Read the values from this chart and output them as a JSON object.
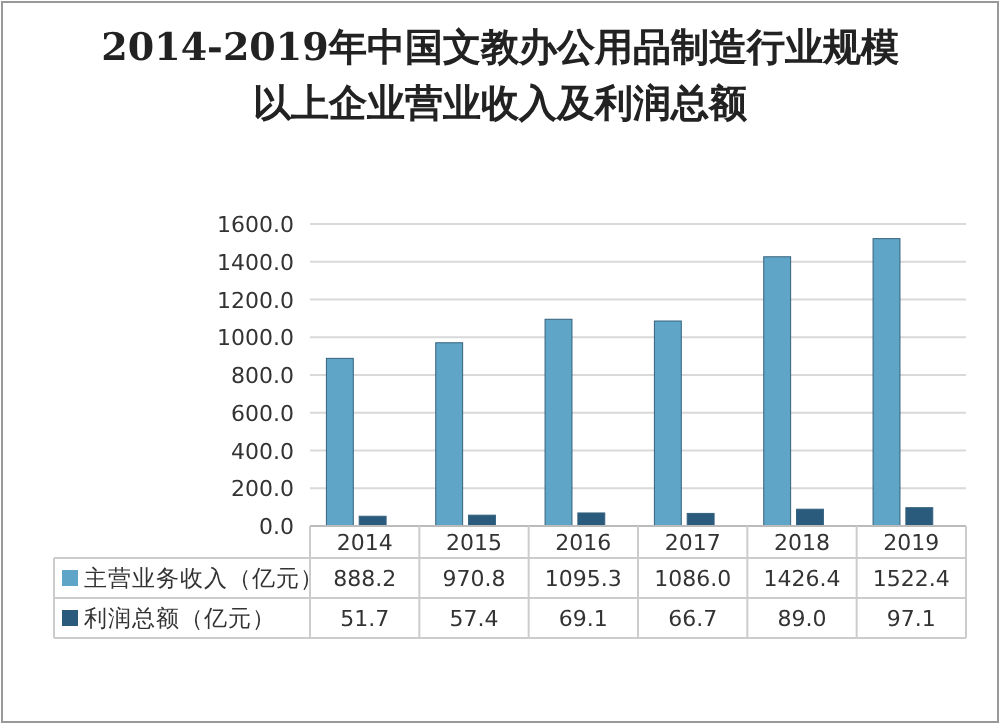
{
  "chart_data": {
    "type": "bar",
    "title": "2014-2019年中国文教办公用品制造行业规模以上企业营业收入及利润总额",
    "categories": [
      "2014",
      "2015",
      "2016",
      "2017",
      "2018",
      "2019"
    ],
    "series": [
      {
        "name": "主营业务收入（亿元）",
        "color": "#5fa5c8",
        "values": [
          888.2,
          970.8,
          1095.3,
          1086.0,
          1426.4,
          1522.4
        ],
        "value_labels": [
          "888.2",
          "970.8",
          "1095.3",
          "1086.0",
          "1426.4",
          "1522.4"
        ]
      },
      {
        "name": "利润总额（亿元）",
        "color": "#2a5b7c",
        "values": [
          51.7,
          57.4,
          69.1,
          66.7,
          89.0,
          97.1
        ],
        "value_labels": [
          "51.7",
          "57.4",
          "69.1",
          "66.7",
          "89.0",
          "97.1"
        ]
      }
    ],
    "ylim": [
      0,
      1600
    ],
    "yticks": [
      {
        "value": 0,
        "label": "0.0"
      },
      {
        "value": 200,
        "label": "200.0"
      },
      {
        "value": 400,
        "label": "400.0"
      },
      {
        "value": 600,
        "label": "600.0"
      },
      {
        "value": 800,
        "label": "800.0"
      },
      {
        "value": 1000,
        "label": "1000.0"
      },
      {
        "value": 1200,
        "label": "1200.0"
      },
      {
        "value": 1400,
        "label": "1400.0"
      },
      {
        "value": 1600,
        "label": "1600.0"
      }
    ],
    "grid": "y",
    "legend": "bottom"
  }
}
